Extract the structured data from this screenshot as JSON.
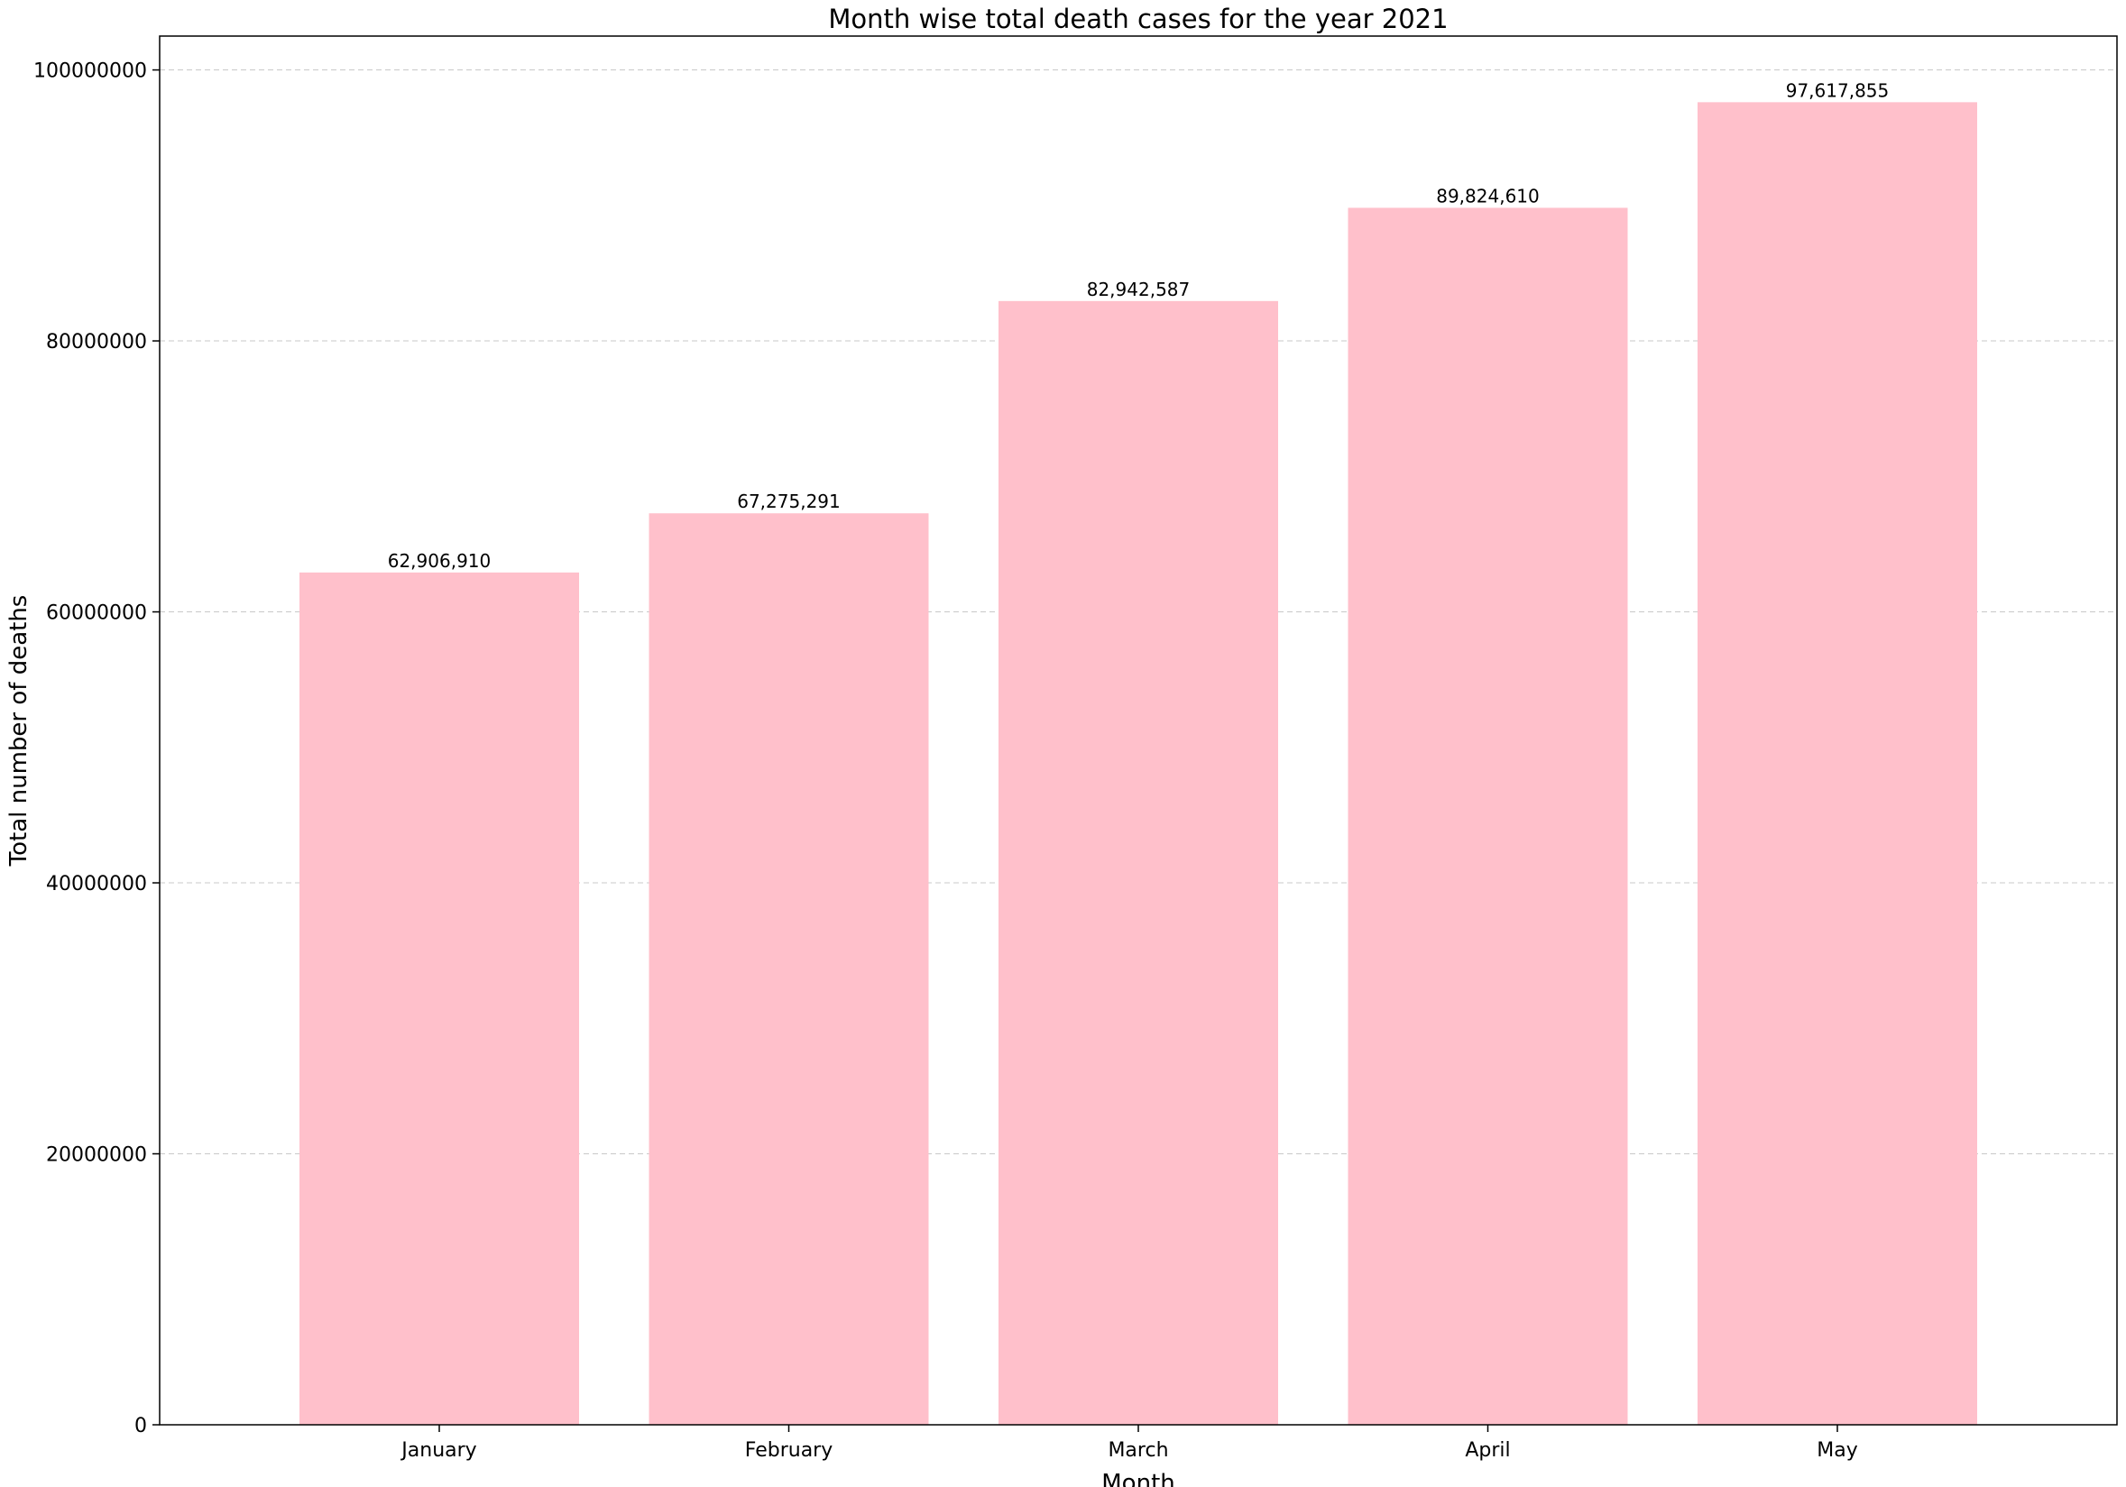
{
  "chart_data": {
    "type": "bar",
    "title": "Month wise total death cases for the year 2021",
    "xlabel": "Month",
    "ylabel": "Total number of deaths",
    "categories": [
      "January",
      "February",
      "March",
      "April",
      "May"
    ],
    "values": [
      62906910,
      67275291,
      82942587,
      89824610,
      97617855
    ],
    "data_labels": [
      "62,906,910",
      "67,275,291",
      "82,942,587",
      "89,824,610",
      "97,617,855"
    ],
    "yticks": [
      0,
      20000000,
      40000000,
      60000000,
      80000000,
      100000000
    ],
    "ytick_labels": [
      "0",
      "20000000",
      "40000000",
      "60000000",
      "80000000",
      "100000000"
    ],
    "ylim": [
      0,
      102500000
    ],
    "grid": "y-dashed",
    "bar_color": "#ffc0cb",
    "legend": "none"
  }
}
